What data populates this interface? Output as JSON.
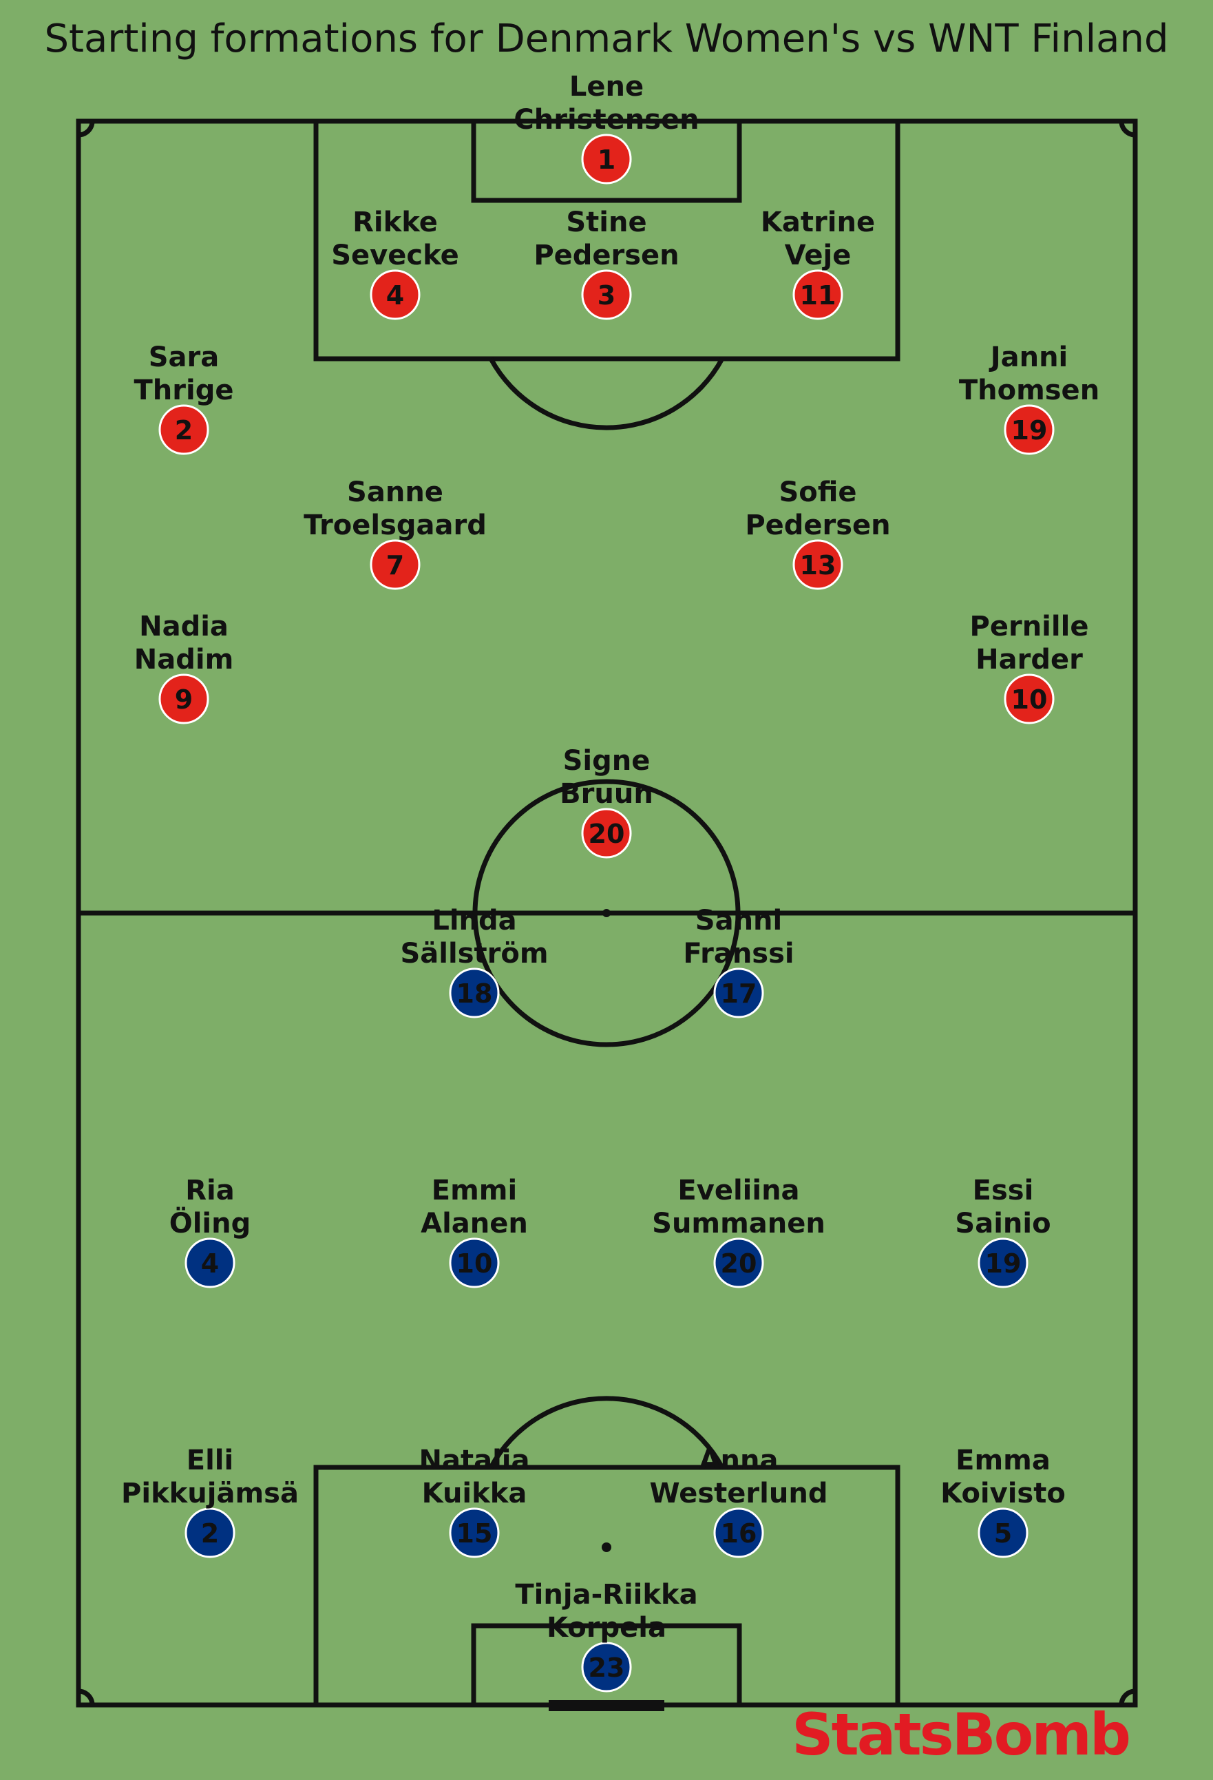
{
  "title": "Starting formations for Denmark Women's vs WNT Finland",
  "brand": {
    "label": "StatsBomb",
    "color": "#e21b23"
  },
  "colors": {
    "pitch": "#7eae68",
    "lines": "#111111",
    "home": "#e3231b",
    "away": "#003181"
  },
  "teams": [
    {
      "name": "Denmark Women's",
      "color": "#e3231b",
      "players": [
        {
          "number": "1",
          "name_lines": [
            "Lene",
            "Christensen"
          ]
        },
        {
          "number": "4",
          "name_lines": [
            "Rikke",
            "Sevecke"
          ]
        },
        {
          "number": "3",
          "name_lines": [
            "Stine",
            "Pedersen"
          ]
        },
        {
          "number": "11",
          "name_lines": [
            "Katrine",
            "Veje"
          ]
        },
        {
          "number": "2",
          "name_lines": [
            "Sara",
            "Thrige"
          ]
        },
        {
          "number": "19",
          "name_lines": [
            "Janni",
            "Thomsen"
          ]
        },
        {
          "number": "7",
          "name_lines": [
            "Sanne",
            "Troelsgaard"
          ]
        },
        {
          "number": "13",
          "name_lines": [
            "Sofie",
            "Pedersen"
          ]
        },
        {
          "number": "9",
          "name_lines": [
            "Nadia",
            "Nadim"
          ]
        },
        {
          "number": "10",
          "name_lines": [
            "Pernille",
            "Harder"
          ]
        },
        {
          "number": "20",
          "name_lines": [
            "Signe",
            "Bruun"
          ]
        }
      ]
    },
    {
      "name": "WNT Finland",
      "color": "#003181",
      "players": [
        {
          "number": "18",
          "name_lines": [
            "Linda",
            "Sällström"
          ]
        },
        {
          "number": "17",
          "name_lines": [
            "Sanni",
            "Franssi"
          ]
        },
        {
          "number": "4",
          "name_lines": [
            "Ria",
            "Öling"
          ]
        },
        {
          "number": "10",
          "name_lines": [
            "Emmi",
            "Alanen"
          ]
        },
        {
          "number": "20",
          "name_lines": [
            "Eveliina",
            "Summanen"
          ]
        },
        {
          "number": "19",
          "name_lines": [
            "Essi",
            "Sainio"
          ]
        },
        {
          "number": "2",
          "name_lines": [
            "Elli",
            "Pikkujämsä"
          ]
        },
        {
          "number": "15",
          "name_lines": [
            "Natalia",
            "Kuikka"
          ]
        },
        {
          "number": "16",
          "name_lines": [
            "Anna",
            "Westerlund"
          ]
        },
        {
          "number": "5",
          "name_lines": [
            "Emma",
            "Koivisto"
          ]
        },
        {
          "number": "23",
          "name_lines": [
            "Tinja-Riikka",
            "Korpela"
          ]
        }
      ]
    }
  ]
}
